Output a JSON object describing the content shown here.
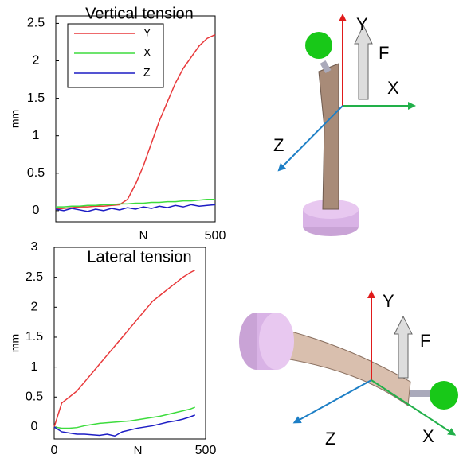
{
  "chart_data": [
    {
      "type": "line",
      "title": "Vertical tension",
      "x_label": "N",
      "y_label": "mm",
      "xlim": [
        0,
        500
      ],
      "ylim": [
        -0.15,
        2.6
      ],
      "xticks": [
        500
      ],
      "yticks": [
        0,
        0.5,
        1,
        1.5,
        2,
        2.5
      ],
      "legend": "upper left",
      "x": [
        0,
        25,
        50,
        75,
        100,
        125,
        150,
        175,
        200,
        225,
        250,
        275,
        300,
        325,
        350,
        375,
        400,
        425,
        450,
        475,
        500
      ],
      "series": [
        {
          "name": "Y",
          "color": "#e8393b",
          "values": [
            0.02,
            0.03,
            0.04,
            0.05,
            0.05,
            0.06,
            0.06,
            0.07,
            0.08,
            0.15,
            0.35,
            0.6,
            0.9,
            1.2,
            1.45,
            1.7,
            1.9,
            2.05,
            2.2,
            2.3,
            2.35
          ]
        },
        {
          "name": "X",
          "color": "#3ddc3d",
          "values": [
            0.05,
            0.05,
            0.06,
            0.06,
            0.07,
            0.07,
            0.08,
            0.08,
            0.09,
            0.09,
            0.1,
            0.1,
            0.11,
            0.11,
            0.12,
            0.12,
            0.13,
            0.13,
            0.14,
            0.15,
            0.15
          ]
        },
        {
          "name": "Z",
          "color": "#1c1cc4",
          "values": [
            0.02,
            0.0,
            0.03,
            0.01,
            -0.01,
            0.02,
            0.0,
            0.03,
            0.01,
            0.04,
            0.02,
            0.05,
            0.03,
            0.06,
            0.04,
            0.07,
            0.05,
            0.08,
            0.06,
            0.07,
            0.08
          ]
        }
      ]
    },
    {
      "type": "line",
      "title": "Lateral tension",
      "x_label": "N",
      "y_label": "mm",
      "xlim": [
        0,
        500
      ],
      "ylim": [
        -0.2,
        3
      ],
      "xticks": [
        0,
        500
      ],
      "yticks": [
        0,
        0.5,
        1,
        1.5,
        2,
        2.5,
        3
      ],
      "x": [
        0,
        25,
        50,
        75,
        100,
        125,
        150,
        175,
        200,
        225,
        250,
        275,
        300,
        325,
        350,
        375,
        400,
        425,
        450,
        465
      ],
      "series": [
        {
          "color": "#e8393b",
          "values": [
            0,
            0.4,
            0.5,
            0.6,
            0.75,
            0.9,
            1.05,
            1.2,
            1.35,
            1.5,
            1.65,
            1.8,
            1.95,
            2.1,
            2.2,
            2.3,
            2.4,
            2.5,
            2.58,
            2.62
          ]
        },
        {
          "color": "#3ddc3d",
          "values": [
            0,
            -0.02,
            -0.02,
            -0.01,
            0.02,
            0.04,
            0.06,
            0.07,
            0.08,
            0.09,
            0.1,
            0.12,
            0.14,
            0.16,
            0.18,
            0.21,
            0.24,
            0.27,
            0.3,
            0.33
          ]
        },
        {
          "color": "#1c1cc4",
          "values": [
            0,
            -0.08,
            -0.1,
            -0.12,
            -0.12,
            -0.13,
            -0.14,
            -0.12,
            -0.15,
            -0.08,
            -0.05,
            -0.02,
            0.0,
            0.02,
            0.05,
            0.08,
            0.1,
            0.13,
            0.17,
            0.2
          ]
        }
      ]
    }
  ],
  "diagrams": [
    {
      "labels": [
        "Y",
        "F",
        "X",
        "Z"
      ]
    },
    {
      "labels": [
        "Y",
        "F",
        "Z",
        "X"
      ]
    }
  ]
}
